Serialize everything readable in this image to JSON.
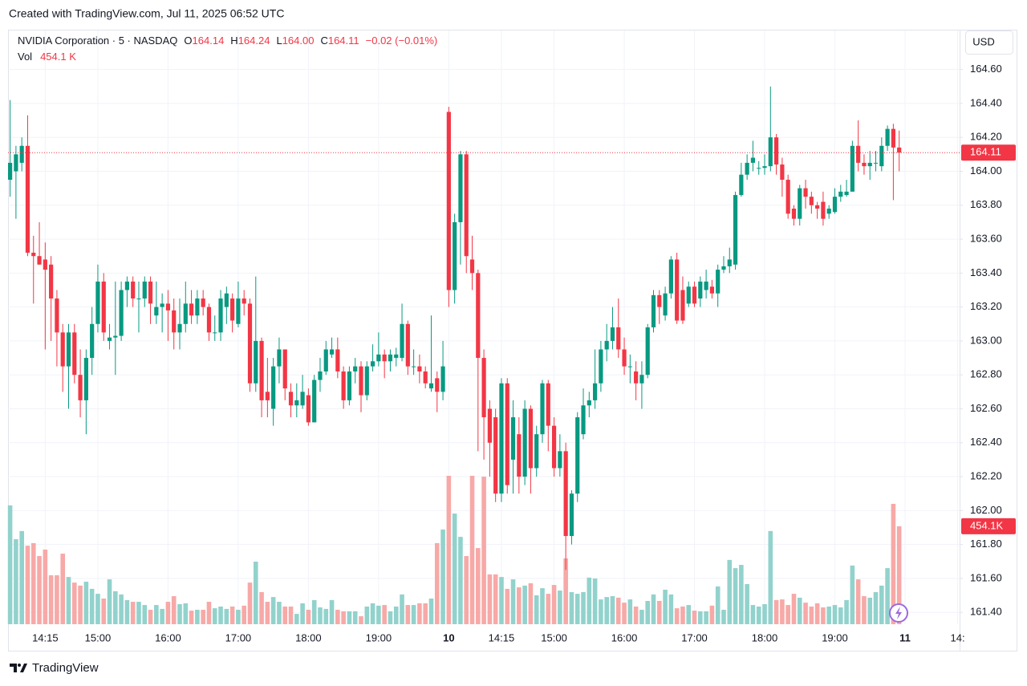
{
  "header": {
    "created": "Created with TradingView.com, Jul 11, 2025 06:52 UTC"
  },
  "footer": {
    "brand": "TradingView"
  },
  "chart_data": {
    "type": "candlestick",
    "legend": {
      "symbol": "NVIDIA Corporation · 5 · NASDAQ",
      "open_label": "O",
      "open": "164.14",
      "high_label": "H",
      "high": "164.24",
      "low_label": "L",
      "low": "164.00",
      "close_label": "C",
      "close": "164.11",
      "change": "−0.02 (−0.01%)",
      "volume_label": "Vol",
      "volume": "454.1 K"
    },
    "currency": "USD",
    "categories": [
      null,
      null,
      null,
      null,
      null,
      null,
      "14:15",
      null,
      null,
      null,
      null,
      null,
      null,
      null,
      null,
      "15:00",
      null,
      null,
      null,
      null,
      null,
      null,
      null,
      null,
      null,
      null,
      null,
      "16:00",
      null,
      null,
      null,
      null,
      null,
      null,
      null,
      null,
      null,
      null,
      null,
      "17:00",
      null,
      null,
      null,
      null,
      null,
      null,
      null,
      null,
      null,
      null,
      null,
      "18:00",
      null,
      null,
      null,
      null,
      null,
      null,
      null,
      null,
      null,
      null,
      null,
      "19:00",
      null,
      null,
      null,
      null,
      null,
      null,
      null,
      null,
      null,
      null,
      null,
      "10",
      null,
      null,
      null,
      null,
      null,
      null,
      null,
      null,
      "14:15",
      null,
      null,
      null,
      null,
      null,
      null,
      null,
      null,
      "15:00",
      null,
      null,
      null,
      null,
      null,
      null,
      null,
      null,
      null,
      null,
      null,
      "16:00",
      null,
      null,
      null,
      null,
      null,
      null,
      null,
      null,
      null,
      null,
      null,
      "17:00",
      null,
      null,
      null,
      null,
      null,
      null,
      null,
      null,
      null,
      null,
      null,
      "18:00",
      null,
      null,
      null,
      null,
      null,
      null,
      null,
      null,
      null,
      null,
      null,
      "19:00",
      null,
      null,
      null,
      null,
      null,
      null,
      null,
      null,
      null,
      null,
      null,
      "11",
      null,
      null,
      null,
      null,
      null,
      null,
      null,
      null,
      "14:"
    ],
    "open": [
      163.95,
      164.0,
      164.05,
      164.15,
      163.52,
      163.5,
      163.48,
      163.45,
      163.25,
      163.05,
      162.85,
      163.05,
      162.8,
      162.65,
      162.9,
      163.1,
      163.35,
      163.0,
      163.02,
      163.03,
      163.3,
      163.35,
      163.25,
      163.25,
      163.35,
      163.15,
      163.2,
      163.22,
      163.18,
      163.05,
      163.1,
      163.22,
      163.15,
      163.25,
      163.2,
      163.05,
      163.05,
      163.2,
      163.25,
      163.1,
      163.25,
      163.22,
      162.75,
      163.0,
      162.7,
      162.6,
      162.85,
      162.95,
      162.7,
      162.62,
      162.62,
      162.68,
      162.52,
      162.77,
      162.82,
      162.92,
      162.95,
      162.82,
      162.65,
      162.82,
      162.85,
      162.68,
      162.85,
      162.88,
      162.92,
      162.88,
      162.9,
      162.9,
      163.1,
      162.85,
      162.85,
      162.82,
      162.72,
      162.78,
      162.7,
      164.35,
      163.3,
      163.7,
      164.1,
      163.48,
      163.4,
      162.9,
      162.6,
      162.55,
      162.1,
      162.75,
      162.3,
      162.45,
      162.2,
      162.6,
      162.25,
      162.45,
      162.75,
      162.5,
      162.25,
      162.35,
      161.85,
      162.1,
      162.45,
      162.62,
      162.65,
      162.75,
      162.95,
      163.0,
      163.08,
      162.95,
      162.85,
      162.82,
      162.75,
      162.8,
      163.08,
      163.27,
      163.15,
      163.28,
      163.48,
      163.3,
      163.22,
      163.32,
      163.25,
      163.3,
      163.32,
      163.28,
      163.42,
      163.44,
      163.45,
      163.86,
      163.98,
      164.05,
      164.02,
      164.02,
      164.03,
      164.2,
      164.04,
      163.95,
      163.78,
      163.72,
      163.9,
      163.85,
      163.8,
      163.82,
      163.75,
      163.76,
      163.85,
      163.86,
      163.88,
      164.15,
      164.05,
      164.03,
      164.05,
      164.03,
      164.15,
      164.25,
      164.14,
      null,
      null,
      null,
      null,
      null,
      null,
      null,
      null,
      null,
      null
    ],
    "high": [
      164.42,
      164.15,
      164.2,
      164.33,
      163.62,
      163.7,
      163.58,
      163.5,
      163.3,
      163.1,
      163.1,
      163.1,
      162.95,
      162.95,
      163.2,
      163.45,
      163.4,
      163.1,
      163.35,
      163.35,
      163.38,
      163.38,
      163.35,
      163.38,
      163.38,
      163.35,
      163.28,
      163.3,
      163.25,
      163.25,
      163.35,
      163.3,
      163.3,
      163.3,
      163.22,
      163.15,
      163.3,
      163.32,
      163.28,
      163.35,
      163.3,
      163.25,
      163.38,
      163.02,
      162.9,
      162.9,
      163.02,
      162.95,
      162.75,
      162.75,
      162.8,
      162.72,
      162.8,
      162.9,
      163.0,
      163.02,
      163.02,
      162.85,
      162.85,
      162.9,
      162.88,
      162.88,
      162.98,
      163.05,
      162.95,
      162.95,
      162.96,
      163.22,
      163.12,
      162.95,
      162.92,
      162.85,
      163.15,
      162.82,
      163.0,
      164.38,
      163.75,
      164.12,
      164.12,
      163.62,
      163.42,
      162.95,
      162.65,
      162.6,
      162.78,
      162.78,
      162.65,
      162.55,
      162.65,
      162.62,
      162.5,
      162.77,
      162.77,
      162.55,
      162.45,
      162.4,
      162.12,
      162.58,
      162.72,
      162.7,
      162.95,
      163.0,
      163.1,
      163.2,
      163.25,
      163.02,
      162.92,
      162.88,
      162.88,
      163.1,
      163.3,
      163.3,
      163.32,
      163.5,
      163.52,
      163.38,
      163.35,
      163.35,
      163.38,
      163.42,
      163.36,
      163.45,
      163.5,
      163.55,
      163.88,
      164.05,
      164.1,
      164.18,
      164.06,
      164.1,
      164.5,
      164.22,
      164.08,
      163.98,
      163.8,
      163.92,
      163.95,
      163.88,
      163.82,
      163.88,
      163.8,
      163.9,
      163.92,
      163.95,
      164.18,
      164.3,
      164.1,
      164.12,
      164.12,
      164.2,
      164.27,
      164.28,
      164.24,
      null,
      null,
      null,
      null,
      null,
      null,
      null,
      null,
      null,
      null
    ],
    "low": [
      163.85,
      163.72,
      164.0,
      163.5,
      163.22,
      163.45,
      162.95,
      163.0,
      162.85,
      162.7,
      162.6,
      162.75,
      162.55,
      162.45,
      162.8,
      163.05,
      163.0,
      162.95,
      162.8,
      163.0,
      163.2,
      163.2,
      163.05,
      163.2,
      163.1,
      163.1,
      163.05,
      163.0,
      162.95,
      162.95,
      163.05,
      163.1,
      163.1,
      163.15,
      163.0,
      163.0,
      163.0,
      163.1,
      163.05,
      163.08,
      163.15,
      162.7,
      162.7,
      162.55,
      162.55,
      162.5,
      162.75,
      162.65,
      162.55,
      162.55,
      162.6,
      162.5,
      162.52,
      162.7,
      162.8,
      162.9,
      162.78,
      162.6,
      162.62,
      162.75,
      162.58,
      162.65,
      162.82,
      162.85,
      162.78,
      162.82,
      162.85,
      162.88,
      162.8,
      162.8,
      162.75,
      162.72,
      162.7,
      162.58,
      162.65,
      163.2,
      163.22,
      163.45,
      163.4,
      163.3,
      162.35,
      162.3,
      162.2,
      162.05,
      162.05,
      162.1,
      162.1,
      162.1,
      162.15,
      162.1,
      162.2,
      162.4,
      162.35,
      162.2,
      162.2,
      161.65,
      161.8,
      162.05,
      162.42,
      162.55,
      162.6,
      162.7,
      162.88,
      162.95,
      162.9,
      162.8,
      162.75,
      162.65,
      162.6,
      162.78,
      163.05,
      163.1,
      163.12,
      163.25,
      163.1,
      163.1,
      163.2,
      163.2,
      163.2,
      163.25,
      163.25,
      163.2,
      163.4,
      163.4,
      163.42,
      163.85,
      163.95,
      164.0,
      163.98,
      163.98,
      164.0,
      163.98,
      163.85,
      163.72,
      163.68,
      163.68,
      163.78,
      163.75,
      163.72,
      163.68,
      163.72,
      163.75,
      163.82,
      163.85,
      163.88,
      164.0,
      163.98,
      163.95,
      164.0,
      164.0,
      164.12,
      163.83,
      164.0,
      null,
      null,
      null,
      null,
      null,
      null,
      null,
      null,
      null,
      null
    ],
    "close": [
      164.05,
      164.1,
      164.15,
      163.52,
      163.5,
      163.45,
      163.42,
      163.25,
      163.05,
      162.85,
      163.05,
      162.8,
      162.65,
      162.9,
      163.1,
      163.35,
      163.05,
      163.02,
      163.03,
      163.3,
      163.35,
      163.25,
      163.25,
      163.35,
      163.22,
      163.2,
      163.22,
      163.18,
      163.05,
      163.1,
      163.22,
      163.15,
      163.25,
      163.2,
      163.05,
      163.05,
      163.25,
      163.28,
      163.12,
      163.25,
      163.22,
      162.75,
      163.0,
      162.65,
      162.65,
      162.85,
      162.95,
      162.72,
      162.62,
      162.65,
      162.7,
      162.52,
      162.77,
      162.82,
      162.95,
      162.95,
      162.82,
      162.65,
      162.82,
      162.85,
      162.68,
      162.85,
      162.88,
      162.92,
      162.88,
      162.92,
      162.92,
      163.1,
      162.85,
      162.85,
      162.82,
      162.75,
      162.75,
      162.7,
      162.85,
      163.3,
      163.7,
      164.1,
      163.5,
      163.4,
      162.9,
      162.55,
      162.4,
      162.1,
      162.75,
      162.15,
      162.55,
      162.2,
      162.6,
      162.25,
      162.45,
      162.75,
      162.5,
      162.25,
      162.35,
      161.85,
      162.1,
      162.55,
      162.62,
      162.65,
      162.75,
      162.95,
      163.0,
      163.08,
      162.95,
      162.85,
      162.85,
      162.75,
      162.8,
      163.08,
      163.27,
      163.2,
      163.28,
      163.48,
      163.12,
      163.12,
      163.32,
      163.22,
      163.35,
      163.35,
      163.28,
      163.42,
      163.44,
      163.48,
      163.86,
      163.98,
      164.05,
      164.08,
      164.02,
      164.03,
      164.2,
      164.04,
      163.95,
      163.75,
      163.72,
      163.9,
      163.85,
      163.8,
      163.78,
      163.72,
      163.78,
      163.85,
      163.88,
      163.88,
      164.15,
      164.05,
      164.03,
      164.05,
      164.05,
      164.15,
      164.25,
      164.14,
      164.11,
      null,
      null,
      null,
      null,
      null,
      null,
      null,
      null,
      null,
      null
    ],
    "volume": [
      551000,
      394000,
      432000,
      364000,
      376000,
      316000,
      346000,
      227000,
      227000,
      327000,
      219000,
      193000,
      179000,
      197000,
      164000,
      141000,
      119000,
      208000,
      153000,
      138000,
      112000,
      104000,
      104000,
      89000,
      67000,
      89000,
      71000,
      104000,
      130000,
      93000,
      97000,
      63000,
      67000,
      67000,
      104000,
      74000,
      82000,
      71000,
      82000,
      67000,
      86000,
      193000,
      290000,
      149000,
      104000,
      126000,
      104000,
      82000,
      82000,
      48000,
      97000,
      67000,
      112000,
      78000,
      71000,
      112000,
      67000,
      60000,
      60000,
      60000,
      37000,
      82000,
      97000,
      86000,
      89000,
      60000,
      82000,
      138000,
      89000,
      89000,
      97000,
      97000,
      119000,
      376000,
      439000,
      688000,
      513000,
      405000,
      316000,
      688000,
      353000,
      684000,
      231000,
      231000,
      219000,
      164000,
      208000,
      171000,
      179000,
      190000,
      134000,
      167000,
      141000,
      182000,
      156000,
      305000,
      149000,
      141000,
      149000,
      216000,
      212000,
      115000,
      126000,
      130000,
      123000,
      100000,
      115000,
      82000,
      67000,
      108000,
      138000,
      108000,
      160000,
      138000,
      74000,
      82000,
      89000,
      63000,
      60000,
      60000,
      86000,
      175000,
      67000,
      298000,
      260000,
      275000,
      186000,
      89000,
      82000,
      93000,
      432000,
      112000,
      115000,
      89000,
      141000,
      123000,
      100000,
      82000,
      97000,
      78000,
      82000,
      89000,
      78000,
      112000,
      272000,
      208000,
      130000,
      123000,
      149000,
      179000,
      260000,
      558000,
      454100,
      null,
      null,
      null,
      null,
      null,
      null,
      null,
      null,
      null,
      null
    ],
    "up_color": "#089981",
    "down_color": "#f23645",
    "volume_up_color": "#92d2cc",
    "volume_down_color": "#f7a9a7",
    "ylim": [
      161.33,
      164.83
    ],
    "yticks": [
      {
        "value": 161.4,
        "label": "161.40"
      },
      {
        "value": 161.6,
        "label": "161.60"
      },
      {
        "value": 161.8,
        "label": "161.80"
      },
      {
        "value": 162.0,
        "label": "162.00"
      },
      {
        "value": 162.2,
        "label": "162.20"
      },
      {
        "value": 162.4,
        "label": "162.40"
      },
      {
        "value": 162.6,
        "label": "162.60"
      },
      {
        "value": 162.8,
        "label": "162.80"
      },
      {
        "value": 163.0,
        "label": "163.00"
      },
      {
        "value": 163.2,
        "label": "163.20"
      },
      {
        "value": 163.4,
        "label": "163.40"
      },
      {
        "value": 163.6,
        "label": "163.60"
      },
      {
        "value": 163.8,
        "label": "163.80"
      },
      {
        "value": 164.0,
        "label": "164.00"
      },
      {
        "value": 164.2,
        "label": "164.20"
      },
      {
        "value": 164.4,
        "label": "164.40"
      },
      {
        "value": 164.6,
        "label": "164.60"
      }
    ],
    "grid": true,
    "last_price": 164.11,
    "last_volume": {
      "value": 454100,
      "label": "454.1K"
    }
  }
}
